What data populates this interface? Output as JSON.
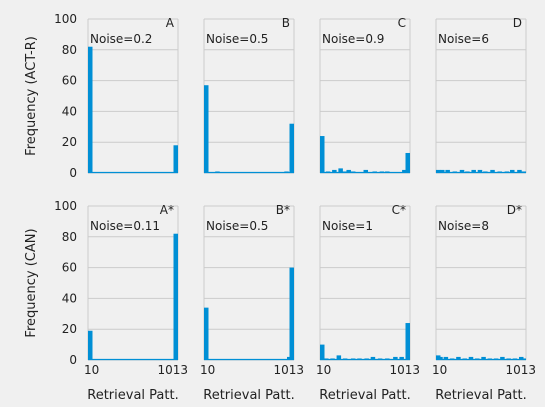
{
  "accent_color": "#008fd5",
  "chart_data": {
    "type": "bar",
    "x_range": [
      10,
      1013
    ],
    "x_tick_labels": [
      "10",
      "1013"
    ],
    "y_range": [
      0,
      100
    ],
    "y_tick_labels": [
      "0",
      "20",
      "40",
      "60",
      "80",
      "100"
    ],
    "grid": true,
    "rows": [
      {
        "ylabel": "Frequency (ACT-R)"
      },
      {
        "ylabel": "Frequency (CAN)"
      }
    ],
    "xlabel": "Retrieval Patt.",
    "panels": [
      {
        "letter": "A",
        "noise": "Noise=0.2",
        "row": 0,
        "col": 0,
        "x": [
          10,
          1013
        ],
        "values": [
          82,
          18
        ]
      },
      {
        "letter": "B",
        "noise": "Noise=0.5",
        "row": 0,
        "col": 1,
        "x": [
          10,
          160,
          930,
          1013
        ],
        "values": [
          57,
          1,
          1,
          32
        ]
      },
      {
        "letter": "C",
        "noise": "Noise=0.9",
        "row": 0,
        "col": 2,
        "x": [
          10,
          100,
          170,
          240,
          280,
          330,
          380,
          520,
          620,
          700,
          760,
          950,
          1013
        ],
        "values": [
          24,
          1,
          2,
          3,
          1,
          2,
          1,
          2,
          1,
          1,
          1,
          2,
          13
        ]
      },
      {
        "letter": "D",
        "noise": "Noise=6",
        "row": 0,
        "col": 3,
        "x": [
          10,
          80,
          140,
          220,
          300,
          360,
          430,
          500,
          560,
          640,
          720,
          800,
          860,
          940,
          1013
        ],
        "values": [
          2,
          2,
          2,
          1,
          2,
          1,
          2,
          2,
          1,
          2,
          1,
          1,
          2,
          2,
          1
        ]
      },
      {
        "letter": "A*",
        "noise": "Noise=0.11",
        "row": 1,
        "col": 0,
        "x": [
          10,
          1013
        ],
        "values": [
          19,
          82
        ]
      },
      {
        "letter": "B*",
        "noise": "Noise=0.5",
        "row": 1,
        "col": 1,
        "x": [
          10,
          960,
          1013
        ],
        "values": [
          34,
          2,
          60
        ]
      },
      {
        "letter": "C*",
        "noise": "Noise=1",
        "row": 1,
        "col": 2,
        "x": [
          10,
          80,
          150,
          220,
          290,
          380,
          450,
          530,
          600,
          680,
          760,
          850,
          920,
          1013
        ],
        "values": [
          10,
          1,
          1,
          3,
          1,
          1,
          1,
          1,
          2,
          1,
          1,
          2,
          2,
          24
        ]
      },
      {
        "letter": "D*",
        "noise": "Noise=8",
        "row": 1,
        "col": 3,
        "x": [
          10,
          60,
          120,
          190,
          260,
          330,
          400,
          470,
          540,
          610,
          680,
          750,
          820,
          890,
          960,
          1013
        ],
        "values": [
          3,
          2,
          2,
          1,
          2,
          1,
          2,
          1,
          2,
          1,
          1,
          2,
          1,
          1,
          2,
          1
        ]
      }
    ]
  }
}
